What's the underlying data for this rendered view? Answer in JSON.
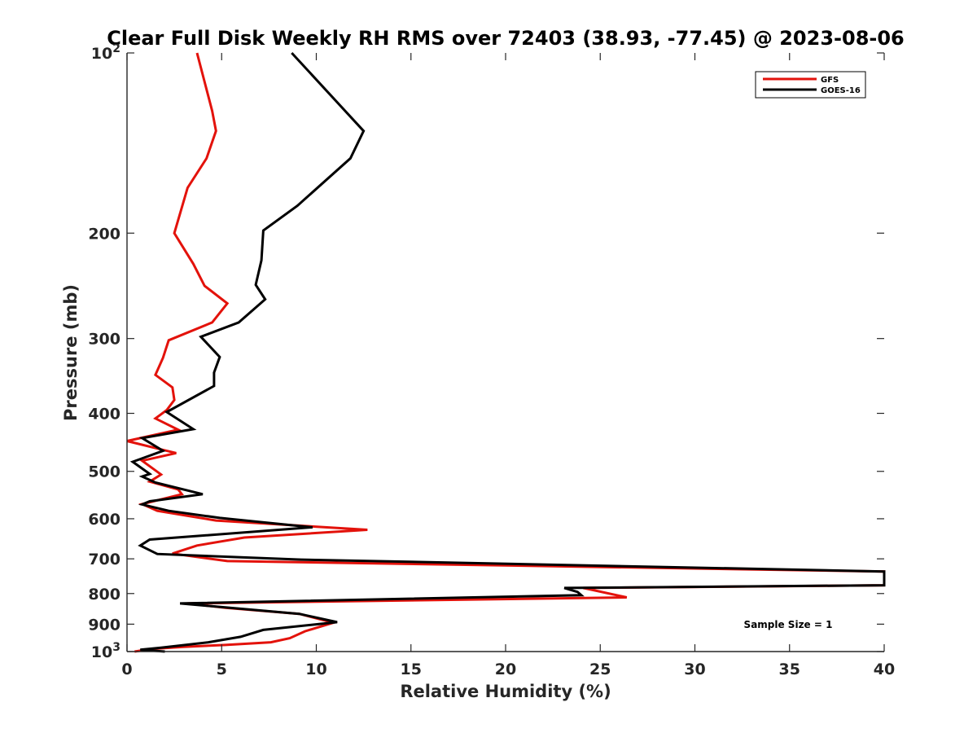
{
  "chart_data": {
    "type": "line",
    "title": "Clear Full Disk Weekly RH RMS over 72403 (38.93, -77.45) @ 2023-08-06",
    "xlabel": "Relative Humidity (%)",
    "ylabel": "Pressure (mb)",
    "xlim": [
      0,
      40
    ],
    "ylim": [
      100,
      1000
    ],
    "yscale": "log",
    "y_reversed": true,
    "xticks": [
      0,
      5,
      10,
      15,
      20,
      25,
      30,
      35,
      40
    ],
    "yticks": [
      {
        "value": 100,
        "label": "10",
        "sup": "2"
      },
      {
        "value": 200,
        "label": "200"
      },
      {
        "value": 300,
        "label": "300"
      },
      {
        "value": 400,
        "label": "400"
      },
      {
        "value": 500,
        "label": "500"
      },
      {
        "value": 600,
        "label": "600"
      },
      {
        "value": 700,
        "label": "700"
      },
      {
        "value": 800,
        "label": "800"
      },
      {
        "value": 900,
        "label": "900"
      },
      {
        "value": 1000,
        "label": "10",
        "sup": "3"
      }
    ],
    "grid": false,
    "legend_position": "top-right",
    "annotation": "Sample Size = 1",
    "series": [
      {
        "name": "GFS",
        "color": "#e3120b",
        "points": [
          [
            3.7,
            100
          ],
          [
            4.5,
            125
          ],
          [
            4.7,
            135
          ],
          [
            4.2,
            150
          ],
          [
            3.2,
            168
          ],
          [
            2.5,
            200
          ],
          [
            3.5,
            225
          ],
          [
            4.1,
            245
          ],
          [
            5.3,
            262
          ],
          [
            4.5,
            282
          ],
          [
            2.2,
            302
          ],
          [
            1.9,
            323
          ],
          [
            1.5,
            345
          ],
          [
            2.4,
            362
          ],
          [
            2.5,
            380
          ],
          [
            2.1,
            395
          ],
          [
            1.5,
            408
          ],
          [
            2.7,
            426
          ],
          [
            0.0,
            445
          ],
          [
            1.6,
            458
          ],
          [
            2.6,
            466
          ],
          [
            0.8,
            480
          ],
          [
            1.8,
            506
          ],
          [
            1.2,
            520
          ],
          [
            2.7,
            536
          ],
          [
            2.9,
            546
          ],
          [
            0.8,
            567
          ],
          [
            1.6,
            582
          ],
          [
            4.7,
            604
          ],
          [
            12.7,
            626
          ],
          [
            6.2,
            645
          ],
          [
            3.7,
            665
          ],
          [
            2.4,
            686
          ],
          [
            5.3,
            706
          ],
          [
            40.0,
            735
          ],
          [
            40.0,
            775
          ],
          [
            24.1,
            783
          ],
          [
            26.4,
            812
          ],
          [
            3.2,
            831
          ],
          [
            5.2,
            845
          ],
          [
            9.1,
            865
          ],
          [
            10.9,
            895
          ],
          [
            9.4,
            925
          ],
          [
            8.6,
            950
          ],
          [
            7.6,
            965
          ],
          [
            5.2,
            975
          ],
          [
            3.0,
            982
          ],
          [
            1.3,
            990
          ],
          [
            0.4,
            1000
          ]
        ]
      },
      {
        "name": "GOES-16",
        "color": "#000000",
        "points": [
          [
            8.7,
            100
          ],
          [
            12.5,
            135
          ],
          [
            11.8,
            150
          ],
          [
            9.0,
            180
          ],
          [
            7.2,
            198
          ],
          [
            7.1,
            222
          ],
          [
            6.8,
            244
          ],
          [
            7.3,
            258
          ],
          [
            5.9,
            282
          ],
          [
            3.9,
            298
          ],
          [
            4.9,
            322
          ],
          [
            4.6,
            342
          ],
          [
            4.6,
            360
          ],
          [
            2.1,
            398
          ],
          [
            3.5,
            425
          ],
          [
            0.8,
            440
          ],
          [
            1.9,
            462
          ],
          [
            0.3,
            482
          ],
          [
            1.2,
            505
          ],
          [
            0.8,
            510
          ],
          [
            1.5,
            522
          ],
          [
            4.0,
            546
          ],
          [
            1.2,
            561
          ],
          [
            0.8,
            568
          ],
          [
            2.2,
            582
          ],
          [
            4.9,
            598
          ],
          [
            9.8,
            620
          ],
          [
            1.2,
            650
          ],
          [
            0.7,
            665
          ],
          [
            1.6,
            687
          ],
          [
            9.2,
            702
          ],
          [
            40.0,
            735
          ],
          [
            40.0,
            775
          ],
          [
            23.1,
            783
          ],
          [
            23.8,
            795
          ],
          [
            24.0,
            805
          ],
          [
            2.8,
            831
          ],
          [
            9.1,
            865
          ],
          [
            11.1,
            893
          ],
          [
            7.2,
            920
          ],
          [
            6.0,
            945
          ],
          [
            4.3,
            965
          ],
          [
            1.8,
            985
          ],
          [
            0.7,
            993
          ],
          [
            2.0,
            1000
          ]
        ]
      }
    ]
  }
}
